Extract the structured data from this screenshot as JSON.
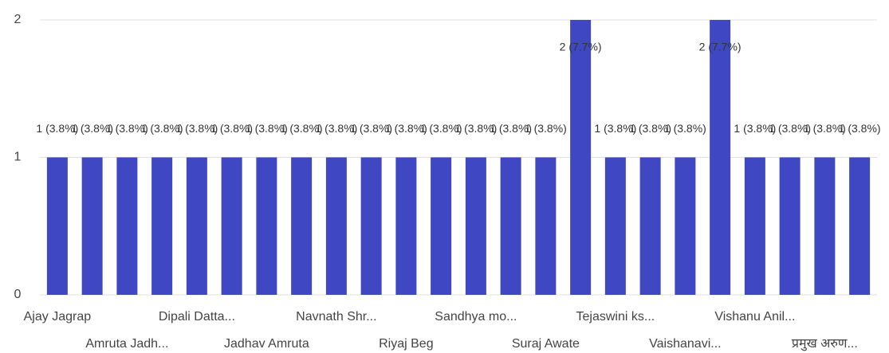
{
  "chart_data": {
    "type": "bar",
    "categories": [
      "Ajay Jagrap",
      null,
      "Amruta Jadh...",
      null,
      "Dipali Datta...",
      null,
      "Jadhav Amruta",
      null,
      "Navnath Shr...",
      null,
      "Riyaj Beg",
      null,
      "Sandhya mo...",
      null,
      "Suraj Awate",
      null,
      "Tejaswini ks...",
      null,
      "Vaishanavi...",
      null,
      "Vishanu Anil...",
      null,
      "प्रमुख अरुण...",
      null
    ],
    "values": [
      1,
      1,
      1,
      1,
      1,
      1,
      1,
      1,
      1,
      1,
      1,
      1,
      1,
      1,
      1,
      2,
      1,
      1,
      1,
      2,
      1,
      1,
      1,
      1
    ],
    "value_labels": [
      "1 (3.8%)",
      "1 (3.8%)",
      "1 (3.8%)",
      "1 (3.8%)",
      "1 (3.8%)",
      "1 (3.8%)",
      "1 (3.8%)",
      "1 (3.8%)",
      "1 (3.8%)",
      "1 (3.8%)",
      "1 (3.8%)",
      "1 (3.8%)",
      "1 (3.8%)",
      "1 (3.8%)",
      "1 (3.8%)",
      "2 (7.7%)",
      "1 (3.8%)",
      "1 (3.8%)",
      "1 (3.8%)",
      "2 (7.7%)",
      "1 (3.8%)",
      "1 (3.8%)",
      "1 (3.8%)",
      "1 (3.8%)"
    ],
    "color": "#3f48c2",
    "ylim": [
      0,
      2
    ],
    "yticks": [
      0,
      1,
      2
    ],
    "grid": true
  }
}
